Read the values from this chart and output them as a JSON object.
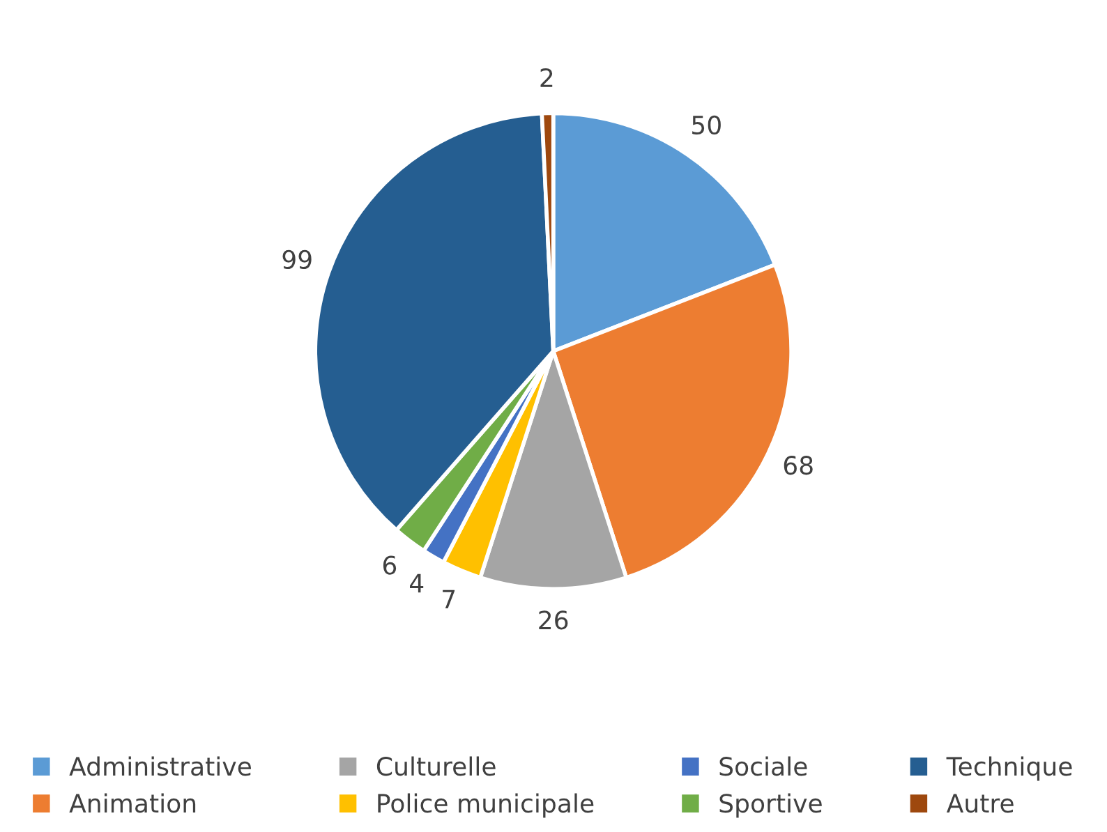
{
  "chart_data": {
    "type": "pie",
    "categories": [
      "Administrative",
      "Animation",
      "Culturelle",
      "Police municipale",
      "Sociale",
      "Sportive",
      "Technique",
      "Autre"
    ],
    "values": [
      50,
      68,
      26,
      7,
      4,
      6,
      99,
      2
    ],
    "colors": [
      "#5b9bd5",
      "#ed7d31",
      "#a5a5a5",
      "#ffc000",
      "#4472c4",
      "#70ad47",
      "#255e91",
      "#9e480e"
    ],
    "data_labels": true,
    "legend": "bottom"
  }
}
